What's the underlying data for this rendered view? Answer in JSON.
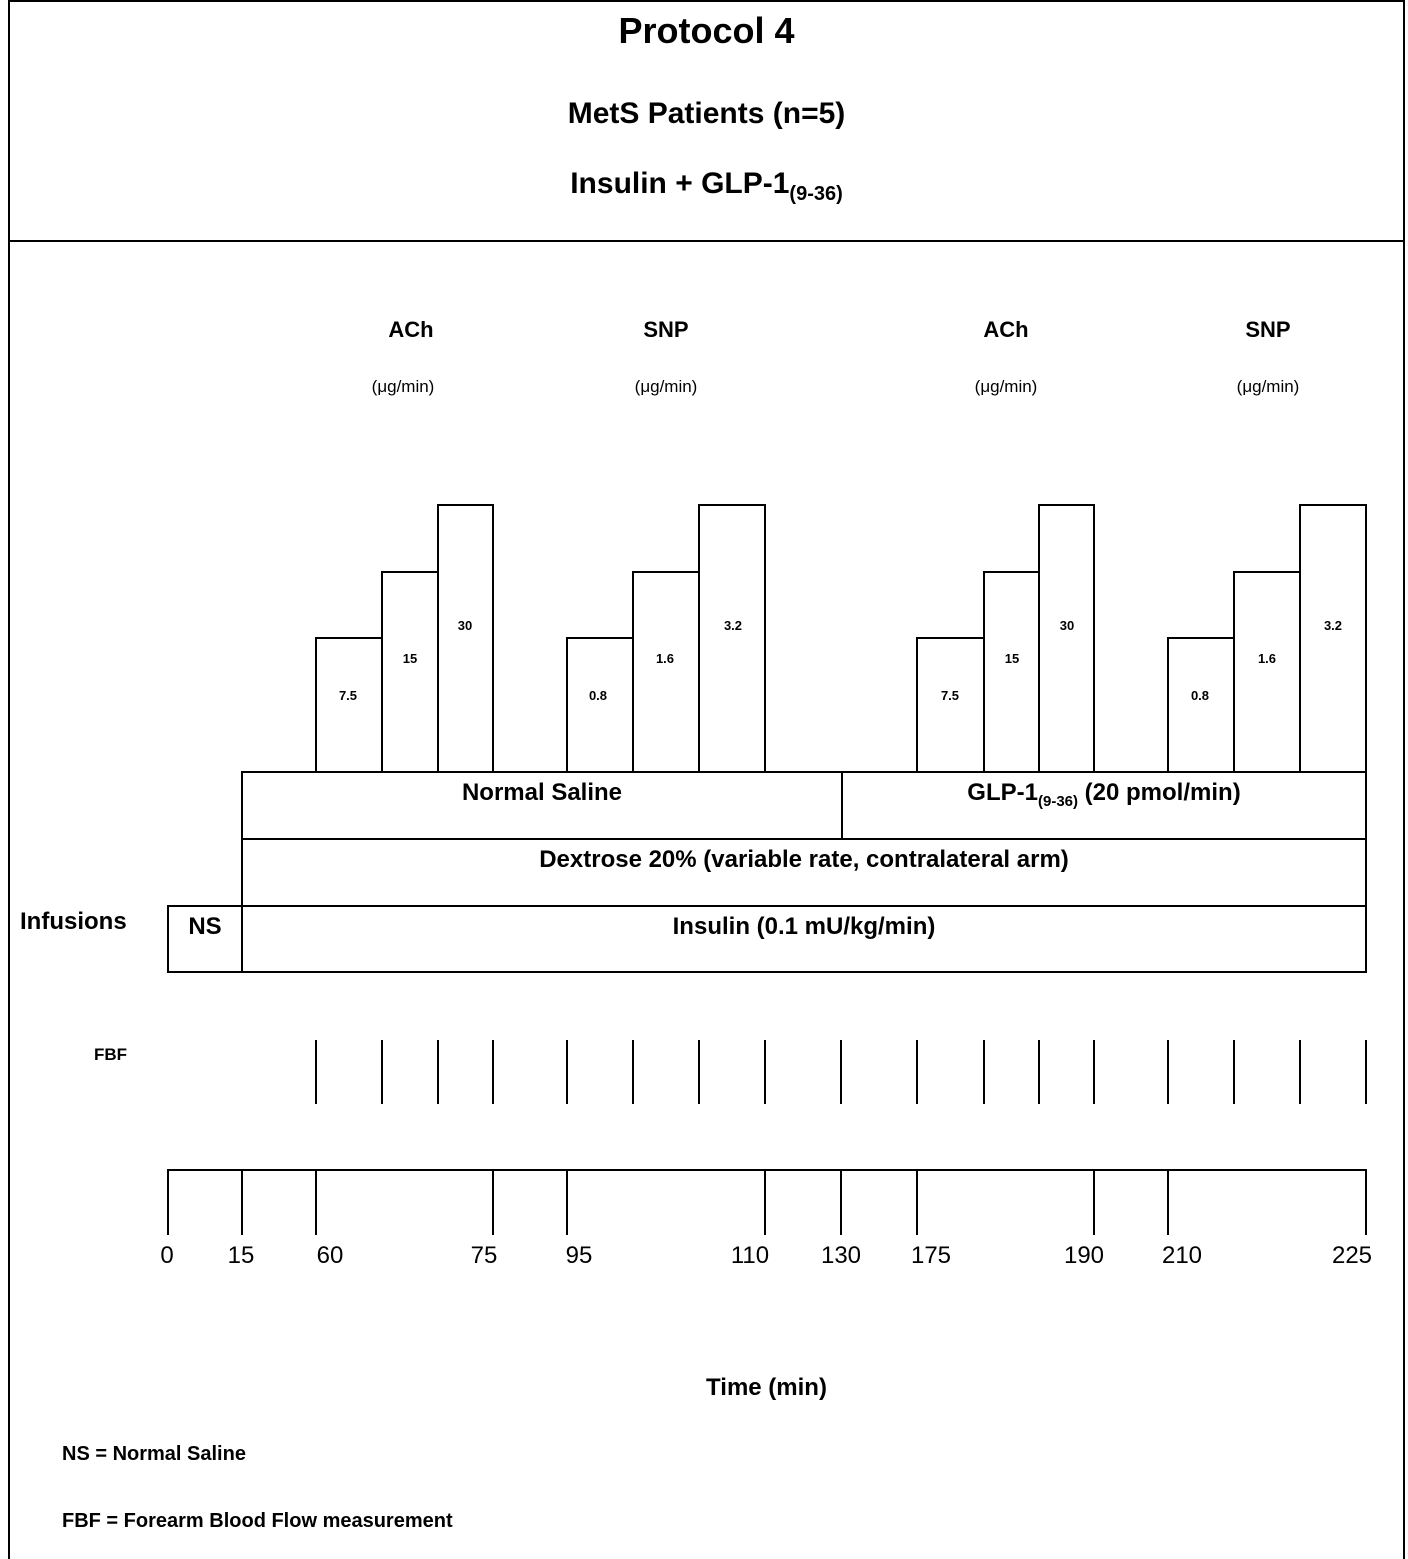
{
  "title": "Protocol 4",
  "subtitle1": "MetS Patients (n=5)",
  "subtitle2": {
    "main": "Insulin + GLP-1",
    "sub": "(9-36)"
  },
  "drug_groups": [
    {
      "name": "ACh",
      "unit": "(μg/min)",
      "doses": [
        "7.5",
        "15",
        "30"
      ]
    },
    {
      "name": "SNP",
      "unit": "(μg/min)",
      "doses": [
        "0.8",
        "1.6",
        "3.2"
      ]
    },
    {
      "name": "ACh",
      "unit": "(μg/min)",
      "doses": [
        "7.5",
        "15",
        "30"
      ]
    },
    {
      "name": "SNP",
      "unit": "(μg/min)",
      "doses": [
        "0.8",
        "1.6",
        "3.2"
      ]
    }
  ],
  "infusions": {
    "label": "Infusions",
    "normal_saline": "Normal Saline",
    "glp1": {
      "main": "GLP-1",
      "sub": "(9-36)",
      "rest": " (20 pmol/min)"
    },
    "dextrose": "Dextrose 20% (variable rate, contralateral arm)",
    "ns_box": "NS",
    "insulin": "Insulin (0.1 mU/kg/min)"
  },
  "fbf_label": "FBF",
  "time_axis": {
    "label": "Time (min)",
    "ticks": [
      "0",
      "15",
      "60",
      "75",
      "95",
      "110",
      "130",
      "175",
      "190",
      "210",
      "225"
    ]
  },
  "legend": {
    "ns": "NS = Normal Saline",
    "fbf": "FBF = Forearm Blood Flow measurement"
  }
}
